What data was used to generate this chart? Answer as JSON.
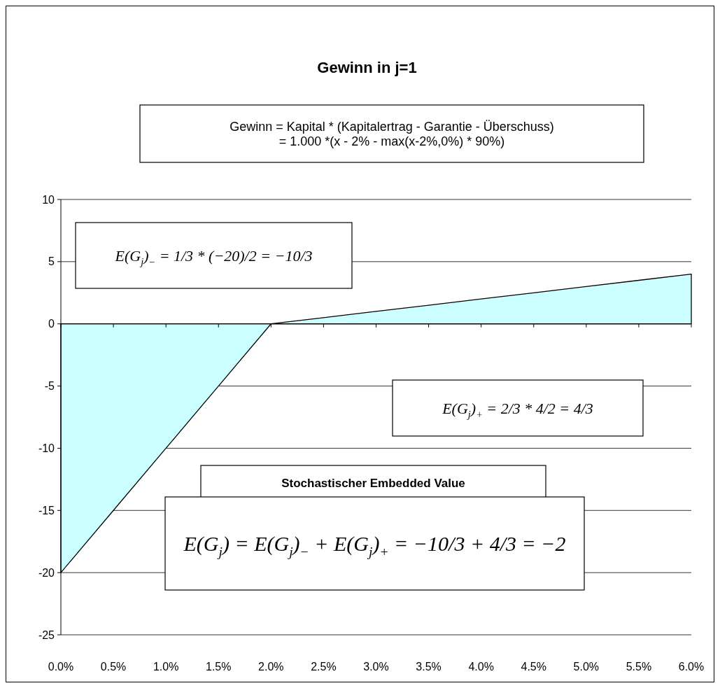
{
  "chart_data": {
    "type": "area",
    "title": "Gewinn in j=1",
    "categories": [
      "0.0%",
      "0.5%",
      "1.0%",
      "1.5%",
      "2.0%",
      "2.5%",
      "3.0%",
      "3.5%",
      "4.0%",
      "4.5%",
      "5.0%",
      "5.5%",
      "6.0%"
    ],
    "series": [
      {
        "color": "#ccffff",
        "values": [
          -20,
          -15,
          -10,
          -5,
          0,
          0.5,
          1,
          1.5,
          2,
          2.5,
          3,
          3.5,
          4
        ]
      }
    ],
    "ylim": [
      -25,
      10
    ],
    "yticks": [
      -25,
      -20,
      -15,
      -10,
      -5,
      0,
      5,
      10
    ],
    "grid": "y",
    "annotations": [
      "Gewinn = Kapital * (Kapitalertrag - Garantie - Überschuss)\n= 1.000 *(x - 2% - max(x-2%,0%) * 90%)",
      "E(G$_{j}$)$_{−}$ = 1/3 * (−20)/2 = −10/3",
      "E(G$_{j}$)$_{+}$ = 2/3 * 4/2 = 4/3",
      "Stochastischer Embedded Value",
      "E(G$_{j}$) = E(G$_{j}$)$_{−}$ + E(G$_{j}$)$_{+}$ = −10/3 + 4/3 = −2"
    ]
  }
}
